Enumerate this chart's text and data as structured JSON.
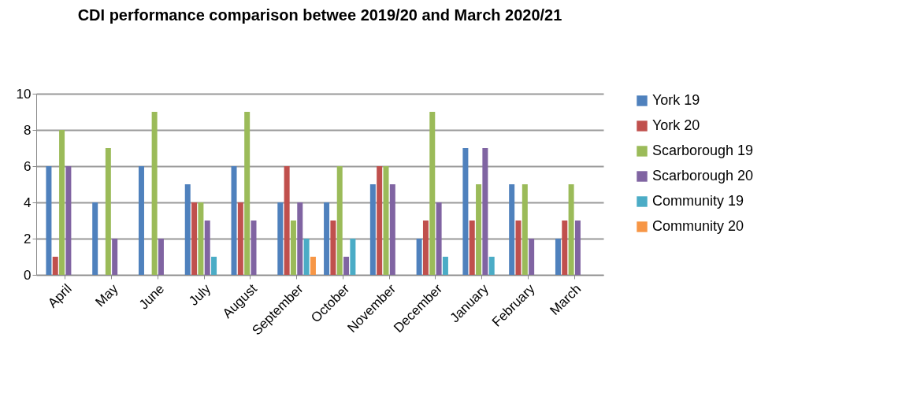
{
  "chart_data": {
    "type": "bar",
    "title": "CDI performance comparison betwee 2019/20 and March 2020/21",
    "categories": [
      "April",
      "May",
      "June",
      "July",
      "August",
      "September",
      "October",
      "November",
      "December",
      "January",
      "February",
      "March"
    ],
    "series": [
      {
        "name": "York 19",
        "color": "#4f81bd",
        "values": [
          6,
          4,
          6,
          5,
          6,
          4,
          4,
          5,
          2,
          7,
          5,
          2
        ]
      },
      {
        "name": "York 20",
        "color": "#c0504d",
        "values": [
          1,
          0,
          0,
          4,
          4,
          6,
          3,
          6,
          3,
          3,
          3,
          3
        ]
      },
      {
        "name": "Scarborough 19",
        "color": "#9bbb59",
        "values": [
          8,
          7,
          9,
          4,
          9,
          3,
          6,
          6,
          9,
          5,
          5,
          5
        ]
      },
      {
        "name": "Scarborough 20",
        "color": "#8064a2",
        "values": [
          6,
          2,
          2,
          3,
          3,
          4,
          1,
          5,
          4,
          7,
          2,
          3
        ]
      },
      {
        "name": "Community 19",
        "color": "#4bacc6",
        "values": [
          0,
          0,
          0,
          1,
          0,
          2,
          2,
          0,
          1,
          1,
          0,
          0
        ]
      },
      {
        "name": "Community 20",
        "color": "#f79646",
        "values": [
          0,
          0,
          0,
          0,
          0,
          1,
          0,
          0,
          0,
          0,
          0,
          0
        ]
      }
    ],
    "ylim": [
      0,
      10
    ],
    "yticks": [
      0,
      2,
      4,
      6,
      8,
      10
    ],
    "grid": "y",
    "legend": "right"
  }
}
